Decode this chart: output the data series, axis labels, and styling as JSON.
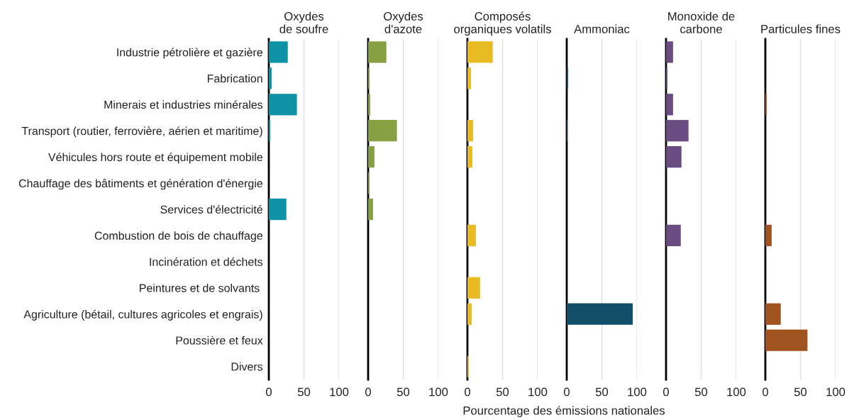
{
  "chart_data": [
    {
      "type": "bar",
      "orientation": "horizontal",
      "title": "Oxydes\nde soufre",
      "categories": [
        "Industrie pétrolière et gazière",
        "Fabrication",
        "Minerais et industries minérales",
        "Transport (routier, ferrovière, aérien et maritime)",
        "Véhicules hors route et équipement mobile",
        "Chauffage des bâtiments et génération d'énergie",
        "Services d'électricité",
        "Combustion de bois de chauffage",
        "Incinération et déchets",
        "Peintures et de solvants ",
        "Agriculture (bétail, cultures agricoles et engrais)",
        "Poussière et feux",
        "Divers"
      ],
      "values": [
        27,
        4,
        40,
        2,
        null,
        null,
        25,
        null,
        null,
        null,
        null,
        null,
        null
      ],
      "color": "#0e93a6",
      "xlim": [
        0,
        100
      ],
      "xticks": [
        0,
        50,
        100
      ],
      "grid": "x"
    },
    {
      "type": "bar",
      "orientation": "horizontal",
      "title": "Oxydes\nd'azote",
      "values": [
        26,
        2,
        3,
        41,
        9,
        2,
        7,
        null,
        null,
        null,
        null,
        null,
        null
      ],
      "color": "#86a043",
      "xlim": [
        0,
        100
      ],
      "xticks": [
        0,
        50,
        100
      ],
      "grid": "x",
      "tick_labels": "x"
    },
    {
      "type": "bar",
      "orientation": "horizontal",
      "title": "Composés\norganiques volatils",
      "xlabel": "Pourcentage des émissions nationales",
      "values": [
        36,
        5,
        null,
        8,
        7,
        null,
        null,
        12,
        null,
        18,
        6,
        null,
        2
      ],
      "color": "#e8bb22",
      "xlim": [
        0,
        100
      ],
      "xticks": [
        0,
        50,
        100
      ],
      "grid": "x",
      "tick_labels": "x"
    },
    {
      "type": "bar",
      "orientation": "horizontal",
      "title": "Ammoniac",
      "values": [
        null,
        2,
        null,
        1,
        null,
        null,
        null,
        null,
        null,
        null,
        94,
        null,
        null
      ],
      "color": "#124e69",
      "xlim": [
        0,
        100
      ],
      "xticks": [
        0,
        50,
        100
      ],
      "grid": "x",
      "tick_labels": "x"
    },
    {
      "type": "bar",
      "orientation": "horizontal",
      "title": "Monoxide de\ncarbone",
      "values": [
        10,
        2,
        10,
        32,
        22,
        null,
        null,
        21,
        null,
        null,
        null,
        null,
        null
      ],
      "color": "#6a4c82",
      "xlim": [
        0,
        100
      ],
      "xticks": [
        0,
        50,
        100
      ],
      "grid": "x",
      "tick_labels": "x"
    },
    {
      "type": "bar",
      "orientation": "horizontal",
      "title": "Particules fines",
      "values": [
        null,
        null,
        2,
        null,
        null,
        null,
        null,
        9,
        null,
        null,
        22,
        60,
        null
      ],
      "color": "#a0521f",
      "xlim": [
        0,
        100
      ],
      "xticks": [
        0,
        50,
        100
      ],
      "grid": "x",
      "tick_labels": "x"
    }
  ]
}
